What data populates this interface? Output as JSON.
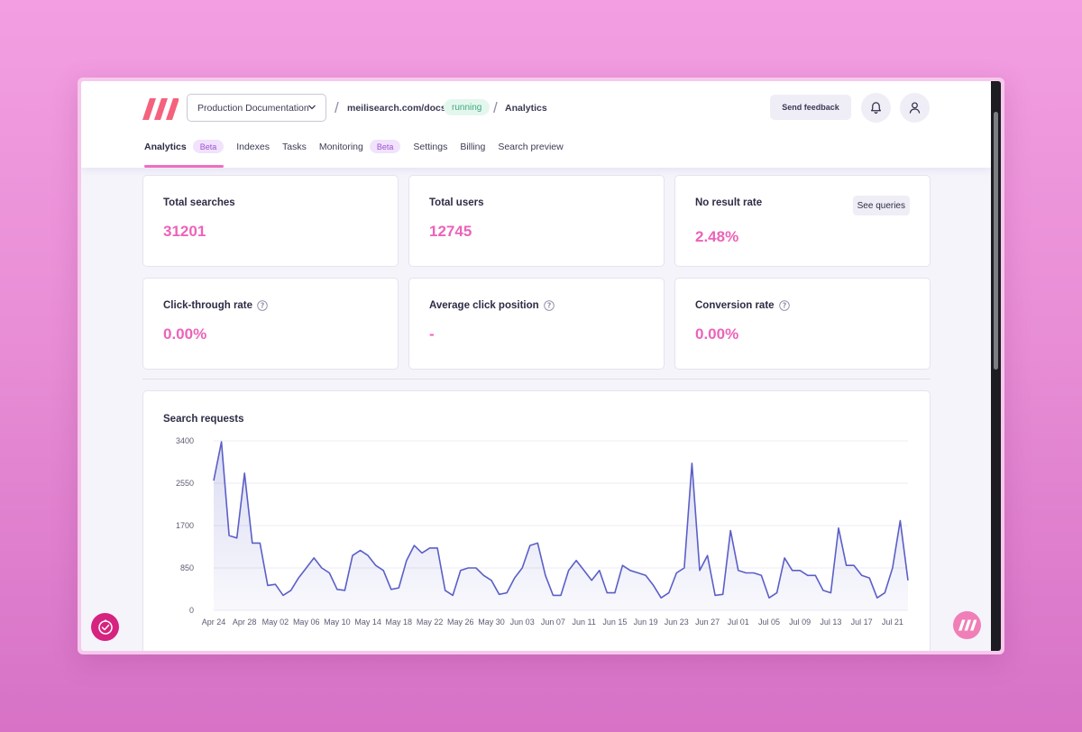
{
  "header": {
    "index_selector": "Production Documentation",
    "breadcrumb_url": "meilisearch.com/docs",
    "status": "running",
    "current_page": "Analytics",
    "feedback_button": "Send feedback"
  },
  "nav": {
    "tabs": [
      {
        "label": "Analytics",
        "badge": "Beta"
      },
      {
        "label": "Indexes"
      },
      {
        "label": "Tasks"
      },
      {
        "label": "Monitoring",
        "badge": "Beta"
      },
      {
        "label": "Settings"
      },
      {
        "label": "Billing"
      },
      {
        "label": "Search preview"
      }
    ]
  },
  "metrics": [
    {
      "title": "Total searches",
      "value": "31201"
    },
    {
      "title": "Total users",
      "value": "12745"
    },
    {
      "title": "No result rate",
      "value": "2.48%",
      "action": "See queries"
    },
    {
      "title": "Click-through rate",
      "value": "0.00%"
    },
    {
      "title": "Average click position",
      "value": "-"
    },
    {
      "title": "Conversion rate",
      "value": "0.00%"
    }
  ],
  "colors": {
    "accent": "#ec63b9",
    "line": "#5b5fc7",
    "area": "#e9e9f8",
    "running": "#3fa97b"
  },
  "chart_data": {
    "type": "area",
    "title": "Search requests",
    "xlabel": "",
    "ylabel": "",
    "ylim": [
      0,
      3400
    ],
    "yticks": [
      0,
      850,
      1700,
      2550,
      3400
    ],
    "xtick_labels": [
      "Apr 24",
      "Apr 28",
      "May 02",
      "May 06",
      "May 10",
      "May 14",
      "May 18",
      "May 22",
      "May 26",
      "May 30",
      "Jun 03",
      "Jun 07",
      "Jun 11",
      "Jun 15",
      "Jun 19",
      "Jun 23",
      "Jun 27",
      "Jul 01",
      "Jul 05",
      "Jul 09",
      "Jul 13",
      "Jul 17",
      "Jul 21"
    ],
    "start_date": "Apr 24",
    "interval_days": 1,
    "grid": true,
    "values": [
      2600,
      3380,
      1500,
      1450,
      2750,
      1350,
      1350,
      500,
      520,
      300,
      400,
      650,
      850,
      1050,
      850,
      750,
      420,
      400,
      1100,
      1200,
      1100,
      900,
      800,
      420,
      450,
      1000,
      1300,
      1150,
      1250,
      1250,
      400,
      300,
      800,
      850,
      850,
      700,
      600,
      320,
      350,
      650,
      850,
      1300,
      1350,
      700,
      300,
      300,
      800,
      1000,
      800,
      600,
      800,
      350,
      350,
      900,
      800,
      750,
      700,
      500,
      250,
      350,
      750,
      850,
      2950,
      800,
      1100,
      300,
      320,
      1600,
      800,
      750,
      750,
      700,
      250,
      350,
      1050,
      800,
      800,
      700,
      700,
      400,
      350,
      1650,
      900,
      900,
      700,
      650,
      250,
      350,
      850,
      1800,
      600
    ]
  }
}
